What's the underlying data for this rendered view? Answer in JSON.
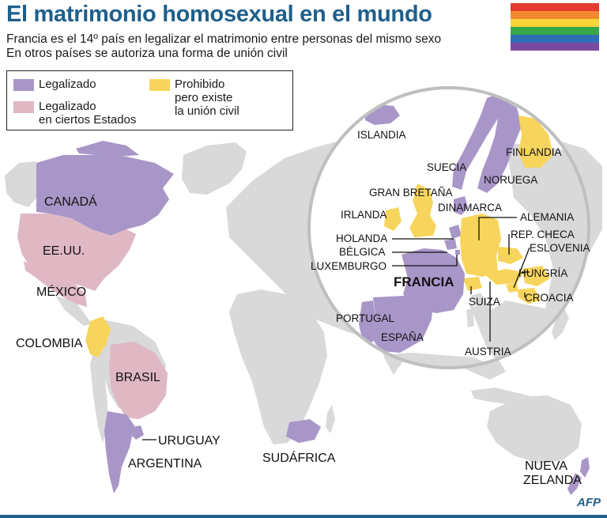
{
  "title": "El matrimonio homosexual en el mundo",
  "subtitle_lines": [
    "Francia es el 14º país en legalizar el matrimonio entre personas del mismo sexo",
    "En otros países se autoriza una forma de unión civil"
  ],
  "legend": {
    "legalized": "Legalizado",
    "some_states_line1": "Legalizado",
    "some_states_line2": "en ciertos Estados",
    "prohibited_line1": "Prohibido",
    "prohibited_line2": "pero existe",
    "prohibited_line3": "la unión civil"
  },
  "colors": {
    "legalized": "#a996c8",
    "some_states": "#dfb8c4",
    "prohibited_civil_union": "#f7d55c",
    "other": "#d9d9d9",
    "title": "#1f5f8b",
    "rainbow": [
      "#e53a2e",
      "#f28a2d",
      "#f6d43a",
      "#3aa64a",
      "#2f6fb8",
      "#7a4aa1"
    ]
  },
  "world_labels": {
    "canada": "CANADÁ",
    "usa": "EE.UU.",
    "mexico": "MÉXICO",
    "colombia": "COLOMBIA",
    "brasil": "BRASIL",
    "uruguay": "URUGUAY",
    "argentina": "ARGENTINA",
    "south_africa": "SUDÁFRICA",
    "new_zealand_1": "NUEVA",
    "new_zealand_2": "ZELANDA"
  },
  "europe_labels": {
    "iceland": "ISLANDIA",
    "sweden": "SUECIA",
    "finland": "FINLANDIA",
    "norway": "NORUEGA",
    "great_britain": "GRAN BRETAÑA",
    "denmark": "DINAMARCA",
    "ireland": "IRLANDA",
    "germany": "ALEMANIA",
    "netherlands": "HOLANDA",
    "czech": "REP. CHECA",
    "belgium": "BÉLGICA",
    "slovenia": "ESLOVENIA",
    "luxembourg": "LUXEMBURGO",
    "france": "FRANCIA",
    "hungary": "HUNGRÍA",
    "croatia": "CROACIA",
    "switzerland": "SUIZA",
    "portugal": "PORTUGAL",
    "spain": "ESPAÑA",
    "austria": "AUSTRIA"
  },
  "source": "AFP"
}
